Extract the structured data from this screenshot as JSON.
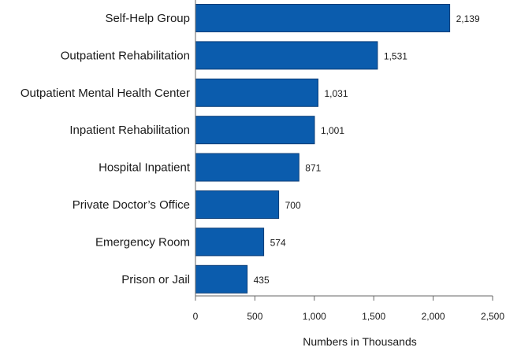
{
  "chart_data": {
    "type": "bar",
    "orientation": "horizontal",
    "categories": [
      "Self-Help Group",
      "Outpatient Rehabilitation",
      "Outpatient Mental Health Center",
      "Inpatient Rehabilitation",
      "Hospital Inpatient",
      "Private Doctor’s Office",
      "Emergency Room",
      "Prison or Jail"
    ],
    "values": [
      2139,
      1531,
      1031,
      1001,
      871,
      700,
      574,
      435
    ],
    "value_labels": [
      "2,139",
      "1,531",
      "1,031",
      "1,001",
      "871",
      "700",
      "574",
      "435"
    ],
    "xlabel": "Numbers in Thousands",
    "ylabel": "",
    "xlim": [
      0,
      2500
    ],
    "x_ticks": [
      0,
      500,
      1000,
      1500,
      2000,
      2500
    ],
    "x_tick_labels": [
      "0",
      "500",
      "1,000",
      "1,500",
      "2,000",
      "2,500"
    ],
    "grid": false,
    "bar_color": "#0b5cad"
  }
}
